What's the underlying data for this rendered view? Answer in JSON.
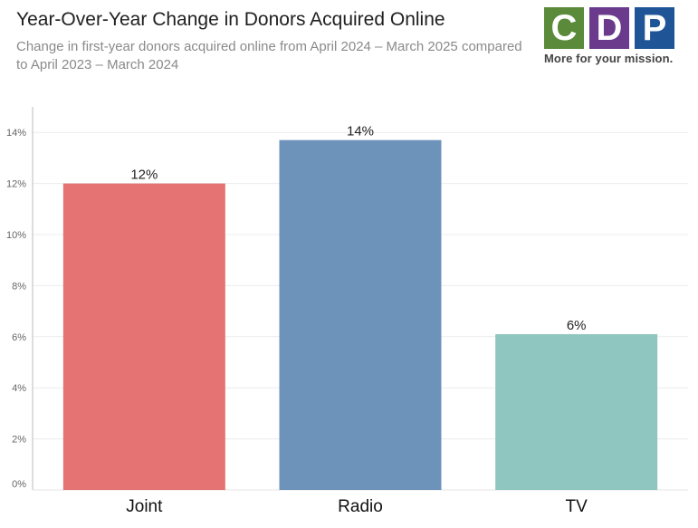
{
  "header": {
    "title": "Year-Over-Year Change in Donors Acquired Online",
    "subtitle": "Change in first-year donors acquired online from April 2024 – March 2025 compared to April 2023 – March 2024"
  },
  "logo": {
    "letters": [
      {
        "char": "C",
        "color": "#5b8a3a"
      },
      {
        "char": "D",
        "color": "#6b3a8c"
      },
      {
        "char": "P",
        "color": "#1f5596"
      }
    ],
    "tagline": "More for your mission."
  },
  "chart_data": {
    "type": "bar",
    "categories": [
      "Joint",
      "Radio",
      "TV"
    ],
    "values": [
      12,
      13.7,
      6.1
    ],
    "data_labels": [
      "12%",
      "14%",
      "6%"
    ],
    "colors": [
      "#e57373",
      "#6e93bb",
      "#8fc6bf"
    ],
    "ylim": [
      0,
      15
    ],
    "yticks": [
      0,
      2,
      4,
      6,
      8,
      10,
      12,
      14
    ],
    "ytick_labels": [
      "0%",
      "2%",
      "4%",
      "6%",
      "8%",
      "10%",
      "12%",
      "14%"
    ],
    "grid": true,
    "xlabel": "",
    "ylabel": ""
  }
}
